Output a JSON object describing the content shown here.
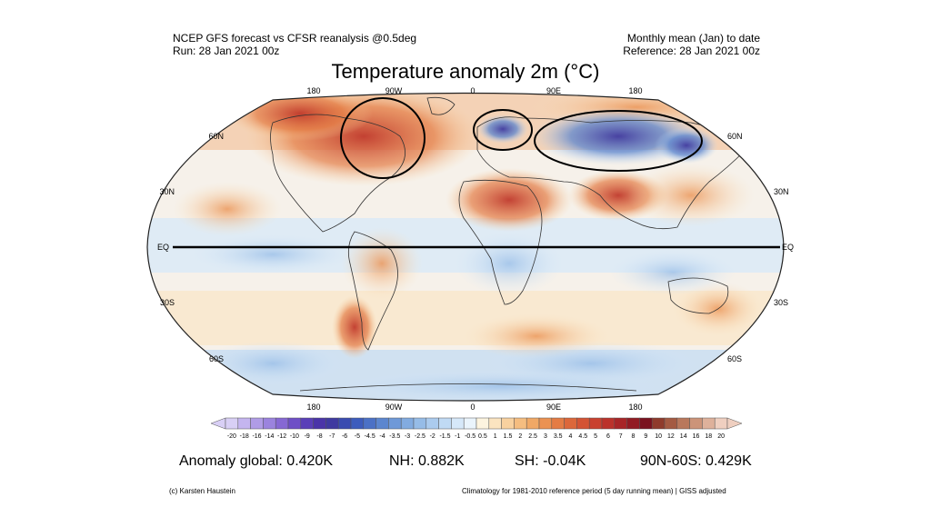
{
  "header": {
    "left_line1": "NCEP GFS forecast vs CFSR reanalysis @0.5deg",
    "left_line2": "Run: 28 Jan 2021 00z",
    "right_line1": "Monthly mean (Jan) to date",
    "right_line2": "Reference: 28 Jan 2021 00z"
  },
  "title": "Temperature anomaly 2m (°C)",
  "map": {
    "projection": "Robinson",
    "lon_labels": [
      "180",
      "90W",
      "0",
      "90E",
      "180"
    ],
    "lat_labels_left": [
      "60N",
      "30N",
      "EQ",
      "30S",
      "60S"
    ],
    "lat_labels_right": [
      "60N",
      "30N",
      "EQ",
      "30S",
      "60S"
    ],
    "annotations": [
      "ellipse-north-america",
      "ellipse-scandinavia",
      "ellipse-siberia",
      "equator-line"
    ],
    "colors": {
      "warm": "#c0392b",
      "cold": "#3a44b0",
      "neutral": "#ffffff"
    }
  },
  "colorbar": {
    "labels": [
      "-20",
      "-18",
      "-16",
      "-14",
      "-12",
      "-10",
      "-9",
      "-8",
      "-7",
      "-6",
      "-5",
      "-4.5",
      "-4",
      "-3.5",
      "-3",
      "-2.5",
      "-2",
      "-1.5",
      "-1",
      "-0.5",
      "0.5",
      "1",
      "1.5",
      "2",
      "2.5",
      "3",
      "3.5",
      "4",
      "4.5",
      "5",
      "6",
      "7",
      "8",
      "9",
      "10",
      "12",
      "14",
      "16",
      "18",
      "20"
    ],
    "colors": [
      "#d8cff5",
      "#c4b5ef",
      "#b09ce6",
      "#9b83de",
      "#8668d3",
      "#6e4fc6",
      "#5a3fb8",
      "#4a34a8",
      "#3f3aa0",
      "#3a4bb0",
      "#3d5cbd",
      "#4b71c6",
      "#5c86cf",
      "#6f99d8",
      "#82abe0",
      "#96bce7",
      "#abcbee",
      "#c0daf4",
      "#d6e8f9",
      "#eaf4fc",
      "#fdf4df",
      "#fbe4c0",
      "#f8d19f",
      "#f5bd80",
      "#f0a866",
      "#eb9252",
      "#e47c44",
      "#dc673a",
      "#d35334",
      "#c9412f",
      "#bb322b",
      "#a82527",
      "#921b23",
      "#7a121f",
      "#8f3b2c",
      "#a45a42",
      "#b9785c",
      "#cc9479",
      "#deb19b",
      "#efcfc0"
    ]
  },
  "stats": {
    "global": "Anomaly global: 0.420K",
    "nh": "NH: 0.882K",
    "sh": "SH: -0.04K",
    "band": "90N-60S: 0.429K"
  },
  "footer": {
    "credit": "(c) Karsten Haustein",
    "climatology": "Climatology for 1981-2010 reference period (5 day running mean) | GISS adjusted"
  }
}
